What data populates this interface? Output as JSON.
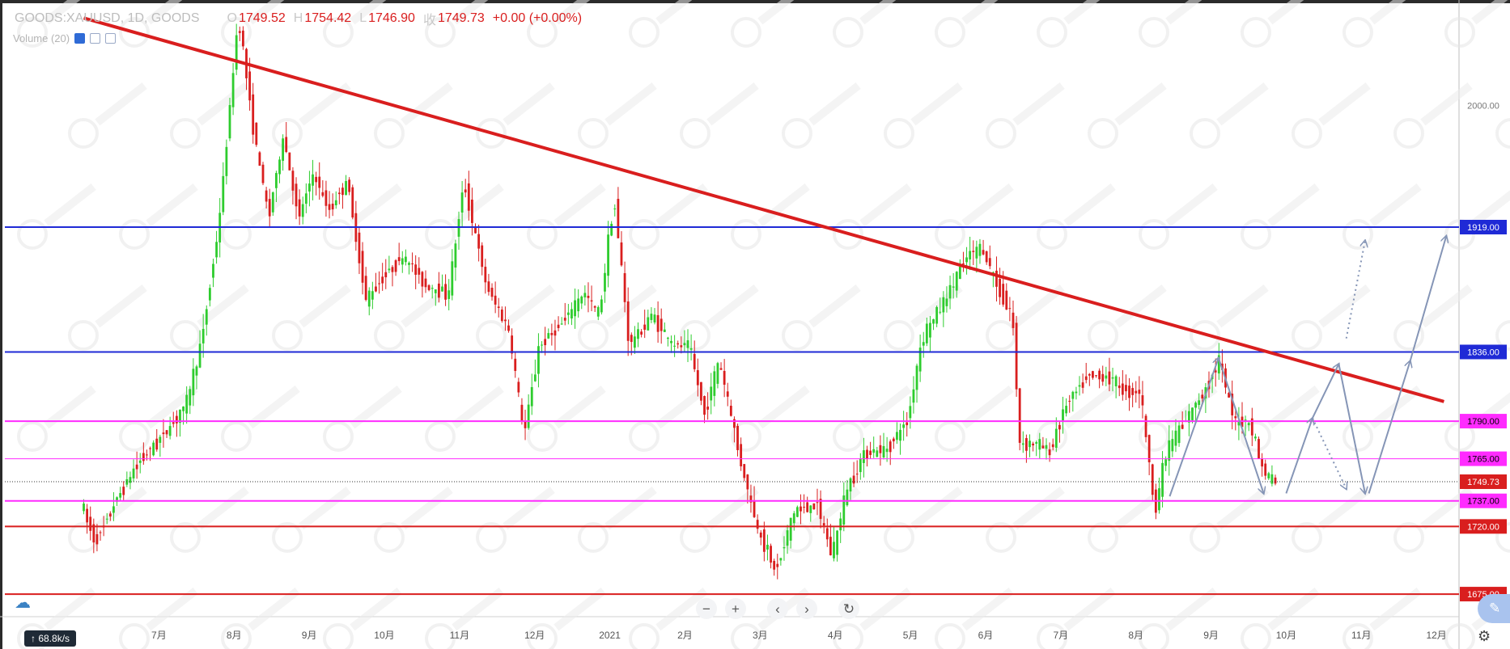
{
  "header": {
    "symbol": "GOODS:XAUUSD, 1D, GOODS",
    "open_key": "O",
    "open": "1749.52",
    "high_key": "H",
    "high": "1754.42",
    "low_key": "L",
    "low": "1746.90",
    "close_key": "收",
    "close": "1749.73",
    "change": "+0.00 (+0.00%)"
  },
  "volume_label": "Volume (20)",
  "nav": {
    "minus": "−",
    "plus": "+",
    "left": "‹",
    "right": "›",
    "reset": "↻"
  },
  "speed": "↑ 68.8k/s",
  "colors": {
    "up": "#2ecc2e",
    "down": "#d91e1e",
    "trend": "#d91e1e",
    "blue": "#1f2ad6",
    "pink": "#ff2bff",
    "arrow": "#8595b6"
  },
  "chart_data": {
    "type": "candlestick",
    "ylim": [
      1660,
      2070
    ],
    "xlim_months": [
      0,
      18
    ],
    "y_ticks": [
      {
        "value": 2000,
        "label": "2000.00"
      }
    ],
    "x_ticks": [
      {
        "m": 1,
        "label": "7月"
      },
      {
        "m": 2,
        "label": "8月"
      },
      {
        "m": 3,
        "label": "9月"
      },
      {
        "m": 4,
        "label": "10月"
      },
      {
        "m": 5,
        "label": "11月"
      },
      {
        "m": 6,
        "label": "12月"
      },
      {
        "m": 7,
        "label": "2021"
      },
      {
        "m": 8,
        "label": "2月"
      },
      {
        "m": 9,
        "label": "3月"
      },
      {
        "m": 10,
        "label": "4月"
      },
      {
        "m": 11,
        "label": "5月"
      },
      {
        "m": 12,
        "label": "6月"
      },
      {
        "m": 13,
        "label": "7月"
      },
      {
        "m": 14,
        "label": "8月"
      },
      {
        "m": 15,
        "label": "9月"
      },
      {
        "m": 16,
        "label": "10月"
      },
      {
        "m": 17,
        "label": "11月"
      },
      {
        "m": 18,
        "label": "12月"
      }
    ],
    "levels": [
      {
        "value": 1919,
        "label": "1919.00",
        "kind": "blue"
      },
      {
        "value": 1836,
        "label": "1836.00",
        "kind": "blue"
      },
      {
        "value": 1790,
        "label": "1790.00",
        "kind": "pink"
      },
      {
        "value": 1765,
        "label": "1765.00",
        "kind": "pinkthin"
      },
      {
        "value": 1749.73,
        "label": "1749.73",
        "kind": "last"
      },
      {
        "value": 1737,
        "label": "1737.00",
        "kind": "pink"
      },
      {
        "value": 1720,
        "label": "1720.00",
        "kind": "red"
      },
      {
        "value": 1675,
        "label": "1675.00",
        "kind": "red"
      }
    ],
    "trendline": [
      [
        0.0,
        2058
      ],
      [
        18.1,
        1803
      ]
    ],
    "price_path": [
      [
        0.0,
        1735
      ],
      [
        0.2,
        1710
      ],
      [
        0.5,
        1740
      ],
      [
        0.8,
        1765
      ],
      [
        1.0,
        1775
      ],
      [
        1.4,
        1800
      ],
      [
        1.6,
        1840
      ],
      [
        1.85,
        1925
      ],
      [
        2.1,
        2060
      ],
      [
        2.3,
        1985
      ],
      [
        2.5,
        1925
      ],
      [
        2.7,
        1980
      ],
      [
        2.9,
        1925
      ],
      [
        3.1,
        1955
      ],
      [
        3.3,
        1930
      ],
      [
        3.55,
        1950
      ],
      [
        3.8,
        1870
      ],
      [
        4.0,
        1885
      ],
      [
        4.3,
        1900
      ],
      [
        4.6,
        1880
      ],
      [
        4.9,
        1875
      ],
      [
        5.1,
        1950
      ],
      [
        5.4,
        1880
      ],
      [
        5.7,
        1850
      ],
      [
        5.9,
        1780
      ],
      [
        6.1,
        1840
      ],
      [
        6.4,
        1855
      ],
      [
        6.7,
        1875
      ],
      [
        6.9,
        1860
      ],
      [
        7.1,
        1940
      ],
      [
        7.3,
        1840
      ],
      [
        7.6,
        1860
      ],
      [
        7.9,
        1840
      ],
      [
        8.1,
        1840
      ],
      [
        8.3,
        1795
      ],
      [
        8.5,
        1830
      ],
      [
        8.8,
        1760
      ],
      [
        9.0,
        1720
      ],
      [
        9.25,
        1690
      ],
      [
        9.5,
        1730
      ],
      [
        9.8,
        1735
      ],
      [
        10.0,
        1700
      ],
      [
        10.2,
        1745
      ],
      [
        10.45,
        1770
      ],
      [
        10.7,
        1770
      ],
      [
        11.0,
        1790
      ],
      [
        11.2,
        1845
      ],
      [
        11.5,
        1870
      ],
      [
        11.8,
        1900
      ],
      [
        12.0,
        1905
      ],
      [
        12.2,
        1880
      ],
      [
        12.4,
        1860
      ],
      [
        12.5,
        1775
      ],
      [
        12.7,
        1775
      ],
      [
        12.9,
        1770
      ],
      [
        13.1,
        1800
      ],
      [
        13.4,
        1820
      ],
      [
        13.65,
        1820
      ],
      [
        13.9,
        1810
      ],
      [
        14.1,
        1810
      ],
      [
        14.3,
        1730
      ],
      [
        14.45,
        1770
      ],
      [
        14.7,
        1790
      ],
      [
        14.95,
        1810
      ],
      [
        15.15,
        1830
      ],
      [
        15.35,
        1790
      ],
      [
        15.55,
        1790
      ],
      [
        15.75,
        1755
      ],
      [
        15.9,
        1749.73
      ]
    ],
    "arrows_solid": [
      [
        [
          14.45,
          1740
        ],
        [
          15.1,
          1832
        ]
      ],
      [
        [
          15.1,
          1832
        ],
        [
          15.7,
          1742
        ]
      ],
      [
        [
          16.0,
          1742
        ],
        [
          16.35,
          1792
        ]
      ],
      [
        [
          16.35,
          1792
        ],
        [
          16.7,
          1828
        ]
      ],
      [
        [
          16.7,
          1828
        ],
        [
          17.05,
          1742
        ]
      ],
      [
        [
          17.1,
          1742
        ],
        [
          17.65,
          1830
        ]
      ],
      [
        [
          17.65,
          1830
        ],
        [
          18.13,
          1913
        ]
      ]
    ],
    "arrows_dotted": [
      [
        [
          16.35,
          1792
        ],
        [
          16.8,
          1745
        ]
      ],
      [
        [
          16.8,
          1845
        ],
        [
          17.05,
          1910
        ]
      ]
    ]
  }
}
